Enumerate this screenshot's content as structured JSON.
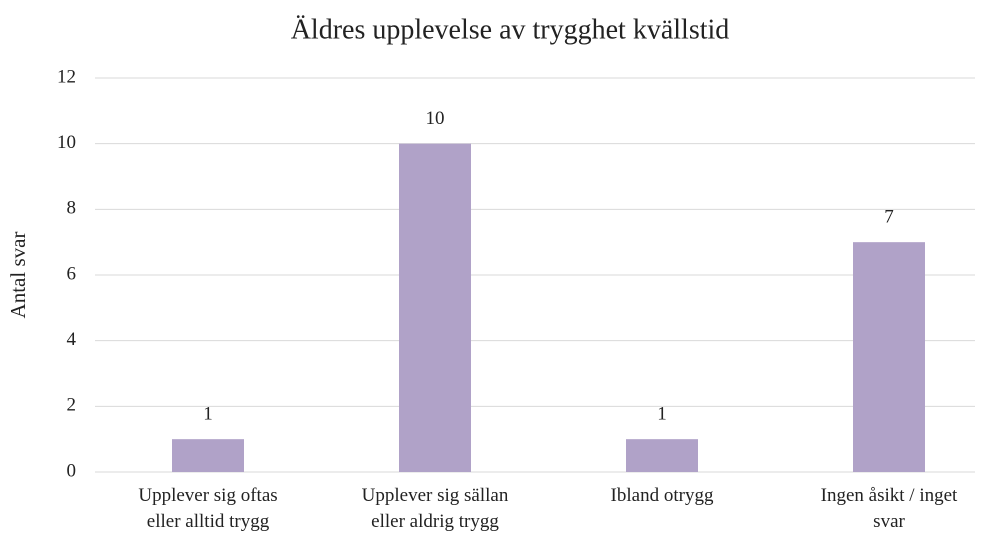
{
  "chart_data": {
    "type": "bar",
    "title": "Äldres upplevelse av trygghet kvällstid",
    "y_label": "Antal svar",
    "categories": [
      "Upplever sig oftas eller alltid trygg",
      "Upplever sig sällan eller aldrig trygg",
      "Ibland otrygg",
      "Ingen åsikt / inget svar"
    ],
    "values": [
      1,
      10,
      1,
      7
    ],
    "color": "#b0a2c8",
    "ylim": [
      0,
      12
    ],
    "yticks": [
      0,
      2,
      4,
      6,
      8,
      10,
      12
    ],
    "grid": true
  }
}
